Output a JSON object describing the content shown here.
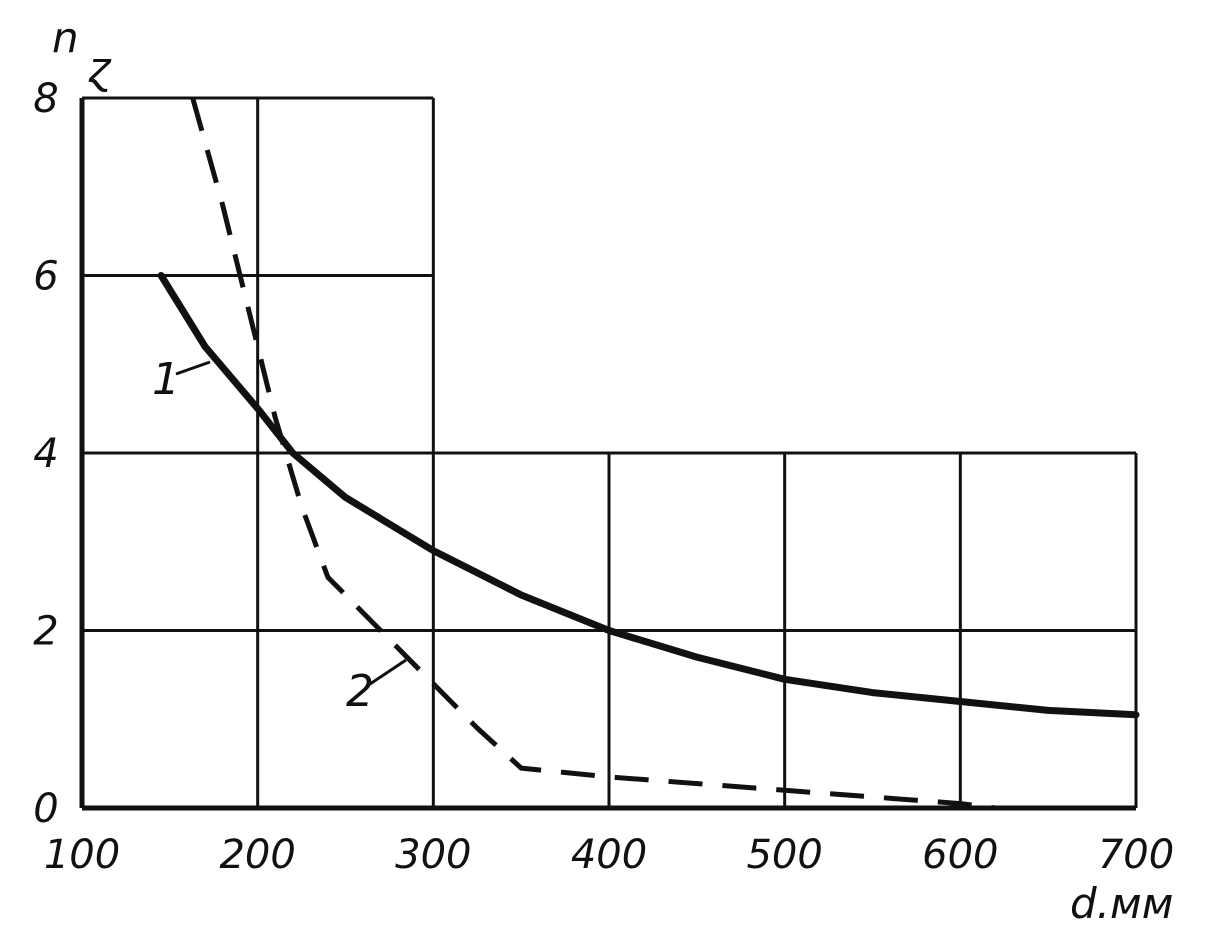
{
  "chart_data": {
    "type": "line",
    "xlabel": "d.мм",
    "ylabel_left": "n",
    "ylabel_right": "ɀ",
    "xlim": [
      100,
      700
    ],
    "ylim": [
      0,
      8
    ],
    "x_ticks": [
      100,
      200,
      300,
      400,
      500,
      600,
      700
    ],
    "x_tick_labels": [
      "100",
      "200",
      "300",
      "400",
      "500",
      "600",
      "700"
    ],
    "y_ticks": [
      0,
      2,
      4,
      6,
      8
    ],
    "y_tick_labels": [
      "0",
      "2",
      "4",
      "6",
      "8"
    ],
    "grid": true,
    "series": [
      {
        "name": "1",
        "style": "solid",
        "x": [
          145,
          170,
          200,
          220,
          250,
          300,
          350,
          400,
          450,
          500,
          550,
          600,
          650,
          700
        ],
        "y": [
          6.0,
          5.2,
          4.5,
          4.0,
          3.5,
          2.9,
          2.4,
          2.0,
          1.7,
          1.45,
          1.3,
          1.2,
          1.1,
          1.05
        ]
      },
      {
        "name": "2",
        "style": "dashed",
        "x": [
          163,
          180,
          200,
          210,
          225,
          240,
          250,
          275,
          300,
          325,
          350,
          400,
          500,
          600,
          620
        ],
        "y": [
          8.0,
          6.8,
          5.2,
          4.4,
          3.4,
          2.6,
          2.4,
          1.9,
          1.4,
          0.9,
          0.45,
          0.35,
          0.2,
          0.05,
          0.0
        ]
      }
    ],
    "annotations": [
      {
        "text": "1",
        "series": "1"
      },
      {
        "text": "2",
        "series": "2"
      }
    ]
  }
}
